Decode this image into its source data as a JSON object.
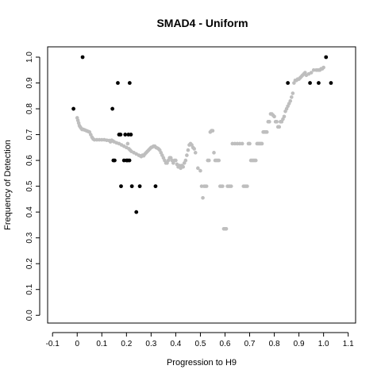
{
  "chart_data": {
    "type": "scatter",
    "title": "SMAD4 - Uniform",
    "xlabel": "Progression to H9",
    "ylabel": "Frequency of Detection",
    "xlim": [
      -0.12,
      1.13
    ],
    "ylim": [
      -0.03,
      1.04
    ],
    "x_ticks": [
      "-0.1",
      "0",
      "0.1",
      "0.2",
      "0.3",
      "0.4",
      "0.5",
      "0.6",
      "0.7",
      "0.8",
      "0.9",
      "1.0",
      "1.1"
    ],
    "y_ticks": [
      "0.0",
      "0.1",
      "0.2",
      "0.3",
      "0.4",
      "0.5",
      "0.6",
      "0.7",
      "0.8",
      "0.9",
      "1.0"
    ],
    "grid": false,
    "legend": "none",
    "colors": {
      "trend": "#bebebe",
      "observed": "#000000"
    },
    "series": [
      {
        "role": "trend",
        "points": [
          [
            0.0,
            0.765
          ],
          [
            0.003,
            0.755
          ],
          [
            0.006,
            0.745
          ],
          [
            0.009,
            0.735
          ],
          [
            0.012,
            0.73
          ],
          [
            0.016,
            0.725
          ],
          [
            0.02,
            0.72
          ],
          [
            0.025,
            0.72
          ],
          [
            0.03,
            0.718
          ],
          [
            0.035,
            0.716
          ],
          [
            0.04,
            0.714
          ],
          [
            0.045,
            0.712
          ],
          [
            0.05,
            0.71
          ],
          [
            0.055,
            0.7
          ],
          [
            0.06,
            0.69
          ],
          [
            0.065,
            0.683
          ],
          [
            0.07,
            0.68
          ],
          [
            0.08,
            0.68
          ],
          [
            0.09,
            0.68
          ],
          [
            0.1,
            0.68
          ],
          [
            0.11,
            0.68
          ],
          [
            0.12,
            0.678
          ],
          [
            0.13,
            0.677
          ],
          [
            0.135,
            0.672
          ],
          [
            0.14,
            0.678
          ],
          [
            0.145,
            0.675
          ],
          [
            0.15,
            0.672
          ],
          [
            0.16,
            0.668
          ],
          [
            0.17,
            0.665
          ],
          [
            0.18,
            0.66
          ],
          [
            0.19,
            0.655
          ],
          [
            0.2,
            0.65
          ],
          [
            0.205,
            0.665
          ],
          [
            0.21,
            0.645
          ],
          [
            0.215,
            0.64
          ],
          [
            0.22,
            0.635
          ],
          [
            0.23,
            0.63
          ],
          [
            0.24,
            0.625
          ],
          [
            0.25,
            0.62
          ],
          [
            0.255,
            0.618
          ],
          [
            0.26,
            0.615
          ],
          [
            0.265,
            0.62
          ],
          [
            0.27,
            0.618
          ],
          [
            0.275,
            0.625
          ],
          [
            0.28,
            0.63
          ],
          [
            0.285,
            0.635
          ],
          [
            0.29,
            0.64
          ],
          [
            0.295,
            0.645
          ],
          [
            0.3,
            0.65
          ],
          [
            0.305,
            0.652
          ],
          [
            0.31,
            0.655
          ],
          [
            0.315,
            0.655
          ],
          [
            0.32,
            0.65
          ],
          [
            0.325,
            0.648
          ],
          [
            0.33,
            0.645
          ],
          [
            0.335,
            0.64
          ],
          [
            0.34,
            0.63
          ],
          [
            0.345,
            0.62
          ],
          [
            0.35,
            0.61
          ],
          [
            0.355,
            0.6
          ],
          [
            0.36,
            0.59
          ],
          [
            0.365,
            0.59
          ],
          [
            0.37,
            0.6
          ],
          [
            0.375,
            0.61
          ],
          [
            0.38,
            0.61
          ],
          [
            0.385,
            0.6
          ],
          [
            0.39,
            0.59
          ],
          [
            0.395,
            0.6
          ],
          [
            0.4,
            0.6
          ],
          [
            0.405,
            0.585
          ],
          [
            0.41,
            0.575
          ],
          [
            0.415,
            0.58
          ],
          [
            0.42,
            0.57
          ],
          [
            0.425,
            0.58
          ],
          [
            0.43,
            0.575
          ],
          [
            0.435,
            0.59
          ],
          [
            0.44,
            0.6
          ],
          [
            0.445,
            0.62
          ],
          [
            0.45,
            0.64
          ],
          [
            0.455,
            0.66
          ],
          [
            0.46,
            0.665
          ],
          [
            0.465,
            0.66
          ],
          [
            0.47,
            0.65
          ],
          [
            0.475,
            0.645
          ],
          [
            0.48,
            0.63
          ],
          [
            0.49,
            0.57
          ],
          [
            0.5,
            0.56
          ],
          [
            0.505,
            0.5
          ],
          [
            0.51,
            0.455
          ],
          [
            0.515,
            0.5
          ],
          [
            0.52,
            0.5
          ],
          [
            0.525,
            0.5
          ],
          [
            0.53,
            0.6
          ],
          [
            0.535,
            0.6
          ],
          [
            0.54,
            0.71
          ],
          [
            0.545,
            0.715
          ],
          [
            0.55,
            0.715
          ],
          [
            0.555,
            0.63
          ],
          [
            0.56,
            0.6
          ],
          [
            0.565,
            0.6
          ],
          [
            0.57,
            0.6
          ],
          [
            0.575,
            0.6
          ],
          [
            0.58,
            0.5
          ],
          [
            0.585,
            0.5
          ],
          [
            0.59,
            0.5
          ],
          [
            0.595,
            0.335
          ],
          [
            0.6,
            0.335
          ],
          [
            0.605,
            0.335
          ],
          [
            0.61,
            0.5
          ],
          [
            0.615,
            0.5
          ],
          [
            0.62,
            0.5
          ],
          [
            0.625,
            0.5
          ],
          [
            0.63,
            0.665
          ],
          [
            0.64,
            0.665
          ],
          [
            0.65,
            0.665
          ],
          [
            0.66,
            0.665
          ],
          [
            0.67,
            0.665
          ],
          [
            0.675,
            0.5
          ],
          [
            0.68,
            0.5
          ],
          [
            0.685,
            0.5
          ],
          [
            0.69,
            0.5
          ],
          [
            0.695,
            0.665
          ],
          [
            0.7,
            0.665
          ],
          [
            0.705,
            0.6
          ],
          [
            0.71,
            0.6
          ],
          [
            0.715,
            0.6
          ],
          [
            0.72,
            0.6
          ],
          [
            0.725,
            0.6
          ],
          [
            0.73,
            0.665
          ],
          [
            0.735,
            0.665
          ],
          [
            0.74,
            0.665
          ],
          [
            0.745,
            0.665
          ],
          [
            0.75,
            0.665
          ],
          [
            0.755,
            0.71
          ],
          [
            0.76,
            0.71
          ],
          [
            0.765,
            0.71
          ],
          [
            0.77,
            0.71
          ],
          [
            0.775,
            0.75
          ],
          [
            0.78,
            0.75
          ],
          [
            0.785,
            0.78
          ],
          [
            0.79,
            0.78
          ],
          [
            0.795,
            0.775
          ],
          [
            0.8,
            0.77
          ],
          [
            0.805,
            0.75
          ],
          [
            0.81,
            0.75
          ],
          [
            0.815,
            0.73
          ],
          [
            0.82,
            0.73
          ],
          [
            0.825,
            0.75
          ],
          [
            0.83,
            0.75
          ],
          [
            0.835,
            0.76
          ],
          [
            0.84,
            0.77
          ],
          [
            0.845,
            0.79
          ],
          [
            0.85,
            0.8
          ],
          [
            0.855,
            0.81
          ],
          [
            0.86,
            0.82
          ],
          [
            0.865,
            0.83
          ],
          [
            0.87,
            0.845
          ],
          [
            0.875,
            0.86
          ],
          [
            0.88,
            0.9
          ],
          [
            0.885,
            0.91
          ],
          [
            0.89,
            0.91
          ],
          [
            0.895,
            0.915
          ],
          [
            0.9,
            0.915
          ],
          [
            0.905,
            0.92
          ],
          [
            0.91,
            0.925
          ],
          [
            0.915,
            0.93
          ],
          [
            0.92,
            0.935
          ],
          [
            0.925,
            0.94
          ],
          [
            0.93,
            0.93
          ],
          [
            0.94,
            0.935
          ],
          [
            0.95,
            0.94
          ],
          [
            0.96,
            0.95
          ],
          [
            0.97,
            0.95
          ],
          [
            0.975,
            0.95
          ],
          [
            0.98,
            0.95
          ],
          [
            0.985,
            0.95
          ],
          [
            0.99,
            0.955
          ],
          [
            0.995,
            0.955
          ],
          [
            1.0,
            0.96
          ]
        ]
      },
      {
        "role": "observed",
        "points": [
          [
            -0.015,
            0.8
          ],
          [
            0.022,
            1.0
          ],
          [
            0.143,
            0.8
          ],
          [
            0.147,
            0.6
          ],
          [
            0.152,
            0.6
          ],
          [
            0.165,
            0.9
          ],
          [
            0.17,
            0.7
          ],
          [
            0.176,
            0.7
          ],
          [
            0.178,
            0.5
          ],
          [
            0.19,
            0.6
          ],
          [
            0.195,
            0.7
          ],
          [
            0.2,
            0.6
          ],
          [
            0.205,
            0.6
          ],
          [
            0.208,
            0.7
          ],
          [
            0.212,
            0.6
          ],
          [
            0.213,
            0.9
          ],
          [
            0.218,
            0.7
          ],
          [
            0.222,
            0.5
          ],
          [
            0.24,
            0.4
          ],
          [
            0.254,
            0.5
          ],
          [
            0.318,
            0.5
          ],
          [
            0.855,
            0.9
          ],
          [
            0.945,
            0.9
          ],
          [
            0.98,
            0.9
          ],
          [
            1.01,
            1.0
          ],
          [
            1.03,
            0.9
          ]
        ]
      }
    ]
  }
}
